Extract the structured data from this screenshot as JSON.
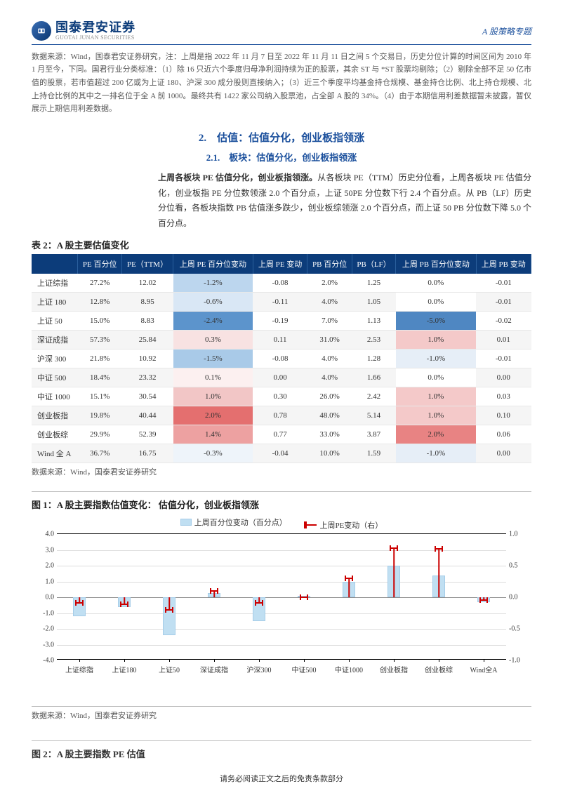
{
  "header": {
    "logo_cn": "国泰君安证券",
    "logo_en": "GUOTAI JUNAN SECURITIES",
    "right": "A 股策略专题"
  },
  "notes": "数据来源：Wind，国泰君安证券研究，注：上周是指 2022 年 11 月 7 日至 2022 年 11 月 11 日之间 5 个交易日，历史分位计算的时间区间为 2010 年 1 月至今，下同。国君行业分类标准：（1）除 16 只近六个季度归母净利润持续为正的股票，其余 ST 与 *ST 股票均剔除；（2）剔除全部不足 50 亿市值的股票，若市值超过 200 亿或为上证 180、沪深 300 成分股则直接纳入；（3）近三个季度平均基金持仓规模、基金持仓比例、北上持仓规模、北上持仓比例的其中之一排名位于全 A 前 1000。最终共有 1422 家公司纳入股票池，占全部 A 股的 34%。（4）由于本期信用利差数据暂未披露，暂仅展示上期信用利差数据。",
  "sec": {
    "h1": "2.　估值：估值分化，创业板指领涨",
    "h2": "2.1.　板块：估值分化，创业板指领涨"
  },
  "body": "上周各板块 PE 估值分化，创业板指领涨。从各板块 PE（TTM）历史分位看，上周各板块 PE 估值分化，创业板指 PE 分位数领涨 2.0 个百分点，上证 50PE 分位数下行 2.4 个百分点。从 PB（LF）历史分位看，各板块指数 PB 估值涨多跌少，创业板综领涨 2.0 个百分点，而上证 50 PB 分位数下降 5.0 个百分点。",
  "body_bold": "上周各板块 PE 估值分化，创业板指领涨。",
  "tbl_title": "表 2：A 股主要估值变化",
  "cols": [
    "",
    "PE 百分位",
    "PE（TTM）",
    "上周 PE 百分位变动",
    "上周 PE 变动",
    "PB 百分位",
    "PB（LF）",
    "上周 PB 百分位变动",
    "上周 PB 变动"
  ],
  "rows": [
    {
      "name": "上证综指",
      "pe_pct": "27.2%",
      "pe": "12.02",
      "dpe_pct": "-1.2%",
      "dpe": "-0.08",
      "pb_pct": "2.0%",
      "pb": "1.25",
      "dpb_pct": "0.0%",
      "dpb": "-0.01",
      "c_pe": "#bcd6ee",
      "c_pb": "#ffffff"
    },
    {
      "name": "上证 180",
      "pe_pct": "12.8%",
      "pe": "8.95",
      "dpe_pct": "-0.6%",
      "dpe": "-0.11",
      "pb_pct": "4.0%",
      "pb": "1.05",
      "dpb_pct": "0.0%",
      "dpb": "-0.01",
      "c_pe": "#d9e7f5",
      "c_pb": "#ffffff"
    },
    {
      "name": "上证 50",
      "pe_pct": "15.0%",
      "pe": "8.83",
      "dpe_pct": "-2.4%",
      "dpe": "-0.19",
      "pb_pct": "7.0%",
      "pb": "1.13",
      "dpb_pct": "-5.0%",
      "dpb": "-0.02",
      "c_pe": "#5c94cc",
      "c_pb": "#4f87c2"
    },
    {
      "name": "深证成指",
      "pe_pct": "57.3%",
      "pe": "25.84",
      "dpe_pct": "0.3%",
      "dpe": "0.11",
      "pb_pct": "31.0%",
      "pb": "2.53",
      "dpb_pct": "1.0%",
      "dpb": "0.01",
      "c_pe": "#f8e2e2",
      "c_pb": "#f4c9c9"
    },
    {
      "name": "沪深 300",
      "pe_pct": "21.8%",
      "pe": "10.92",
      "dpe_pct": "-1.5%",
      "dpe": "-0.08",
      "pb_pct": "4.0%",
      "pb": "1.28",
      "dpb_pct": "-1.0%",
      "dpb": "-0.01",
      "c_pe": "#a9cae8",
      "c_pb": "#e6eef7"
    },
    {
      "name": "中证 500",
      "pe_pct": "18.4%",
      "pe": "23.32",
      "dpe_pct": "0.1%",
      "dpe": "0.00",
      "pb_pct": "4.0%",
      "pb": "1.66",
      "dpb_pct": "0.0%",
      "dpb": "0.00",
      "c_pe": "#fcf0f0",
      "c_pb": "#ffffff"
    },
    {
      "name": "中证 1000",
      "pe_pct": "15.1%",
      "pe": "30.54",
      "dpe_pct": "1.0%",
      "dpe": "0.30",
      "pb_pct": "26.0%",
      "pb": "2.42",
      "dpb_pct": "1.0%",
      "dpb": "0.03",
      "c_pe": "#f2c6c6",
      "c_pb": "#f4c9c9"
    },
    {
      "name": "创业板指",
      "pe_pct": "19.8%",
      "pe": "40.44",
      "dpe_pct": "2.0%",
      "dpe": "0.78",
      "pb_pct": "48.0%",
      "pb": "5.14",
      "dpb_pct": "1.0%",
      "dpb": "0.10",
      "c_pe": "#e46f6f",
      "c_pb": "#f4c9c9"
    },
    {
      "name": "创业板综",
      "pe_pct": "29.9%",
      "pe": "52.39",
      "dpe_pct": "1.4%",
      "dpe": "0.77",
      "pb_pct": "33.0%",
      "pb": "3.87",
      "dpb_pct": "2.0%",
      "dpb": "0.06",
      "c_pe": "#eda1a1",
      "c_pb": "#e88383"
    },
    {
      "name": "Wind 全 A",
      "pe_pct": "36.7%",
      "pe": "16.75",
      "dpe_pct": "-0.3%",
      "dpe": "-0.04",
      "pb_pct": "10.0%",
      "pb": "1.59",
      "dpb_pct": "-1.0%",
      "dpb": "0.00",
      "c_pe": "#eef4fa",
      "c_pb": "#e6eef7"
    }
  ],
  "src": "数据来源：Wind，国泰君安证券研究",
  "chart": {
    "title": "图 1：A 股主要指数估值变化：",
    "subtitle": "估值分化，创业板指领涨",
    "legend": {
      "bar": "上周百分位变动（百分点）",
      "line": "上周PE变动（右）"
    },
    "ylim_left": [
      -4,
      4
    ],
    "ytick_left": [
      -4,
      -3,
      -2,
      -1,
      0,
      1,
      2,
      3,
      4
    ],
    "ylim_right": [
      -1,
      1
    ],
    "ytick_right": [
      -1.0,
      -0.5,
      0.0,
      0.5,
      1.0
    ],
    "categories": [
      "上证综指",
      "上证180",
      "上证50",
      "深证成指",
      "沪深300",
      "中证500",
      "中证1000",
      "创业板指",
      "创业板综",
      "Wind全A"
    ],
    "bar_values": [
      -1.2,
      -0.6,
      -2.4,
      0.3,
      -1.5,
      0.1,
      1.0,
      2.0,
      1.4,
      -0.3
    ],
    "line_values": [
      -0.08,
      -0.11,
      -0.19,
      0.11,
      -0.08,
      0.0,
      0.3,
      0.78,
      0.77,
      -0.04
    ],
    "bar_color": "#c0dff2",
    "line_color": "#cc0000",
    "grid_color": "#dddddd"
  },
  "fig2_title": "图 2：A 股主要指数 PE 估值",
  "footer": "请务必阅读正文之后的免责条款部分"
}
